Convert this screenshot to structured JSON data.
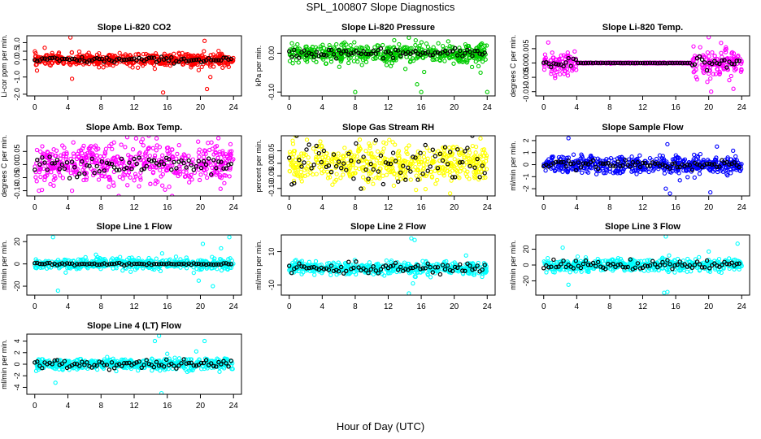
{
  "figure": {
    "title": "SPL_100807  Slope Diagnostics",
    "xlabel": "Hour of Day (UTC)"
  },
  "chart_data": [
    {
      "type": "scatter",
      "title": "Slope Li-820 CO2",
      "ylabel": "Li-cor ppm per min.",
      "color": "#ff0000",
      "x_ticks": [
        0,
        4,
        8,
        12,
        16,
        20,
        24
      ],
      "xlim": [
        -0.96,
        24.96
      ],
      "y_ticks": [
        -2.0,
        -1.0,
        0.0,
        0.5,
        1.0
      ],
      "y_tick_labels": [
        "-2.0",
        "-1.0",
        "0.0",
        "0.5",
        "1.0"
      ],
      "ylim": [
        -2.1,
        1.4
      ],
      "spread": 0.18,
      "outliers": [
        [
          1.2,
          0.7
        ],
        [
          4.3,
          1.3
        ],
        [
          4.5,
          -1.1
        ],
        [
          15.5,
          -1.9
        ],
        [
          20.5,
          1.1
        ],
        [
          20.8,
          -1.7
        ],
        [
          21.2,
          -1.0
        ],
        [
          19.8,
          -0.6
        ]
      ],
      "black_spread": 0.08
    },
    {
      "type": "scatter",
      "title": "Slope Li-820 Pressure",
      "ylabel": "kPa per min.",
      "color": "#00cc00",
      "x_ticks": [
        0,
        4,
        8,
        12,
        16,
        20,
        24
      ],
      "xlim": [
        -0.96,
        24.96
      ],
      "y_ticks": [
        -0.1,
        0.0
      ],
      "y_tick_labels": [
        "-0.10",
        "0.00"
      ],
      "ylim": [
        -0.11,
        0.045
      ],
      "spread": 0.012,
      "outliers": [
        [
          8.0,
          -0.1
        ],
        [
          14.5,
          0.04
        ],
        [
          15.5,
          -0.08
        ],
        [
          16.0,
          -0.1
        ],
        [
          24.0,
          -0.1
        ],
        [
          23.2,
          -0.05
        ]
      ],
      "black_spread": 0.006
    },
    {
      "type": "scatter",
      "title": "Slope Li-820 Temp.",
      "ylabel": "degrees C per min.",
      "color": "#ff00ff",
      "x_ticks": [
        0,
        4,
        8,
        12,
        16,
        20,
        24
      ],
      "xlim": [
        -0.96,
        24.96
      ],
      "y_ticks": [
        -0.01,
        -0.005,
        0.0,
        0.005
      ],
      "y_tick_labels": [
        "-0.010",
        "-0.005",
        "0.000",
        "0.005"
      ],
      "ylim": [
        -0.0115,
        0.0095
      ],
      "spread": 0.0022,
      "quiet": [
        4.0,
        18.0
      ],
      "outliers": [
        [
          20.0,
          0.009
        ],
        [
          20.3,
          -0.01
        ],
        [
          22.5,
          -0.006
        ],
        [
          21.5,
          0.007
        ],
        [
          23.0,
          -0.009
        ]
      ],
      "black_spread": 0.001
    },
    {
      "type": "scatter",
      "title": "Slope Amb. Box Temp.",
      "ylabel": "degrees C per min.",
      "color": "#ff00ff",
      "x_ticks": [
        0,
        4,
        8,
        12,
        16,
        20,
        24
      ],
      "xlim": [
        -0.96,
        24.96
      ],
      "y_ticks": [
        -0.1,
        -0.05,
        0.0,
        0.05
      ],
      "y_tick_labels": [
        "-0.10",
        "-0.05",
        "0.00",
        "0.05"
      ],
      "ylim": [
        -0.12,
        0.11
      ],
      "spread": 0.04,
      "outliers": [
        [
          0.5,
          -0.1
        ],
        [
          4.5,
          -0.1
        ]
      ],
      "black_spread": 0.02
    },
    {
      "type": "scatter",
      "title": "Slope Gas Stream RH",
      "ylabel": "percent per min.",
      "color": "#ffff00",
      "x_ticks": [
        0,
        4,
        8,
        12,
        16,
        20,
        24
      ],
      "xlim": [
        -0.96,
        24.96
      ],
      "y_ticks": [
        -0.1,
        -0.05,
        0.0,
        0.05
      ],
      "y_tick_labels": [
        "-0.10",
        "-0.05",
        "0.00",
        "0.05"
      ],
      "ylim": [
        -0.13,
        0.11
      ],
      "spread": 0.038,
      "outliers": [
        [
          19.5,
          -0.12
        ],
        [
          9.0,
          -0.1
        ]
      ],
      "black_spread": 0.04
    },
    {
      "type": "scatter",
      "title": "Slope Sample Flow",
      "ylabel": "ml/min per min.",
      "color": "#0000ff",
      "x_ticks": [
        0,
        4,
        8,
        12,
        16,
        20,
        24
      ],
      "xlim": [
        -0.96,
        24.96
      ],
      "y_ticks": [
        -2,
        -1,
        0,
        1,
        2
      ],
      "y_tick_labels": [
        "-2",
        "-1",
        "0",
        "1",
        "2"
      ],
      "ylim": [
        -2.6,
        2.4
      ],
      "spread": 0.35,
      "outliers": [
        [
          3.0,
          2.2
        ],
        [
          14.8,
          -2.0
        ],
        [
          15.0,
          1.7
        ],
        [
          15.3,
          -2.4
        ],
        [
          20.2,
          -2.3
        ],
        [
          16.5,
          -1.3
        ],
        [
          21.0,
          1.5
        ]
      ],
      "black_spread": 0.15
    },
    {
      "type": "scatter",
      "title": "Slope Line 1 Flow",
      "ylabel": "ml/min per min.",
      "color": "#00ffff",
      "x_ticks": [
        0,
        4,
        8,
        12,
        16,
        20,
        24
      ],
      "xlim": [
        -0.96,
        24.96
      ],
      "y_ticks": [
        -20,
        0,
        20
      ],
      "y_tick_labels": [
        "-20",
        "0",
        "20"
      ],
      "ylim": [
        -28,
        26
      ],
      "spread": 2.5,
      "outliers": [
        [
          2.2,
          24
        ],
        [
          2.8,
          -24
        ],
        [
          19.2,
          -8
        ],
        [
          19.8,
          -15
        ],
        [
          20.3,
          18
        ],
        [
          21.5,
          -20
        ],
        [
          22.5,
          14
        ],
        [
          23.5,
          24
        ],
        [
          23.3,
          -5
        ],
        [
          20.8,
          -3
        ]
      ],
      "black_spread": 0.5
    },
    {
      "type": "scatter",
      "title": "Slope Line 2 Flow",
      "ylabel": "ml/min per min.",
      "color": "#00ffff",
      "x_ticks": [
        0,
        4,
        8,
        12,
        16,
        20,
        24
      ],
      "xlim": [
        -0.96,
        24.96
      ],
      "y_ticks": [
        -10,
        10
      ],
      "y_tick_labels": [
        "-10",
        "10"
      ],
      "ylim": [
        -16,
        20
      ],
      "spread": 1.8,
      "outliers": [
        [
          14.8,
          18
        ],
        [
          15.2,
          17
        ],
        [
          14.5,
          -15
        ],
        [
          15.0,
          -9
        ]
      ],
      "black_spread": 1.5
    },
    {
      "type": "scatter",
      "title": "Slope Line 3 Flow",
      "ylabel": "ml/min per min.",
      "color": "#00ffff",
      "x_ticks": [
        0,
        4,
        8,
        12,
        16,
        20,
        24
      ],
      "xlim": [
        -0.96,
        24.96
      ],
      "y_ticks": [
        -20,
        0,
        20
      ],
      "y_tick_labels": [
        "-20",
        "0",
        "20"
      ],
      "ylim": [
        -38,
        38
      ],
      "spread": 4,
      "outliers": [
        [
          2.3,
          22
        ],
        [
          3.0,
          -25
        ],
        [
          14.8,
          36
        ],
        [
          15.2,
          12
        ],
        [
          14.6,
          -35
        ],
        [
          15.0,
          -34
        ],
        [
          20.0,
          17
        ],
        [
          23.5,
          27
        ]
      ],
      "black_spread": 3
    },
    {
      "type": "scatter",
      "title": "Slope Line 4 (LT) Flow",
      "ylabel": "ml/min per min.",
      "color": "#00ffff",
      "x_ticks": [
        0,
        4,
        8,
        12,
        16,
        20,
        24
      ],
      "xlim": [
        -0.96,
        24.96
      ],
      "y_ticks": [
        -4,
        -2,
        0,
        2,
        4
      ],
      "y_tick_labels": [
        "-4",
        "-2",
        "0",
        "2",
        "4"
      ],
      "ylim": [
        -5.2,
        5.2
      ],
      "spread": 0.45,
      "outliers": [
        [
          2.5,
          -3.2
        ],
        [
          15.0,
          4.9
        ],
        [
          14.5,
          4.0
        ],
        [
          15.3,
          -5.0
        ],
        [
          16.0,
          1.8
        ],
        [
          20.5,
          4.0
        ],
        [
          19.5,
          2.2
        ]
      ],
      "black_spread": 0.4
    }
  ]
}
